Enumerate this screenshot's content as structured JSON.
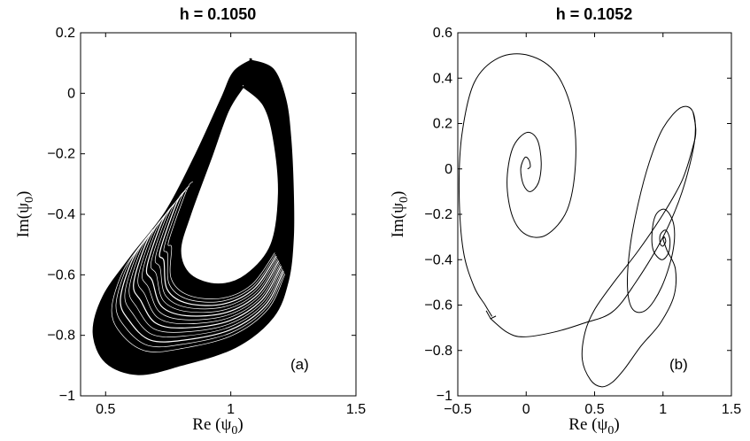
{
  "chart_data": [
    {
      "type": "line",
      "title": "h = 0.1050",
      "xlabel": "Re (ψ0)",
      "ylabel": "Im(ψ0)",
      "xlim": [
        0.4,
        1.5
      ],
      "ylim": [
        -1.0,
        0.2
      ],
      "xticks": [
        0.5,
        1,
        1.5
      ],
      "xtick_labels": [
        "0.5",
        "1",
        "1.5"
      ],
      "yticks": [
        0.2,
        0,
        -0.2,
        -0.4,
        -0.6,
        -0.8,
        -1
      ],
      "ytick_labels": [
        "0.2",
        "0",
        "−0.2",
        "−0.4",
        "−0.6",
        "−0.8",
        "−1"
      ],
      "panel_label": "(a)",
      "grid": false,
      "series": [
        {
          "description": "chaotic attractor band (many overlapping trajectory loops)",
          "outer_boundary": [
            [
              1.08,
              0.11
            ],
            [
              1.17,
              0.08
            ],
            [
              1.22,
              -0.02
            ],
            [
              1.24,
              -0.15
            ],
            [
              1.25,
              -0.32
            ],
            [
              1.25,
              -0.48
            ],
            [
              1.23,
              -0.62
            ],
            [
              1.17,
              -0.74
            ],
            [
              1.02,
              -0.84
            ],
            [
              0.8,
              -0.9
            ],
            [
              0.63,
              -0.93
            ],
            [
              0.5,
              -0.89
            ],
            [
              0.45,
              -0.79
            ],
            [
              0.49,
              -0.67
            ],
            [
              0.6,
              -0.54
            ],
            [
              0.74,
              -0.39
            ],
            [
              0.86,
              -0.2
            ],
            [
              0.96,
              -0.02
            ],
            [
              1.01,
              0.07
            ],
            [
              1.08,
              0.11
            ]
          ],
          "inner_hole": [
            [
              1.05,
              0.02
            ],
            [
              1.13,
              -0.04
            ],
            [
              1.17,
              -0.15
            ],
            [
              1.19,
              -0.33
            ],
            [
              1.16,
              -0.5
            ],
            [
              1.06,
              -0.6
            ],
            [
              0.95,
              -0.63
            ],
            [
              0.84,
              -0.6
            ],
            [
              0.8,
              -0.52
            ],
            [
              0.84,
              -0.4
            ],
            [
              0.92,
              -0.22
            ],
            [
              0.99,
              -0.06
            ],
            [
              1.05,
              0.02
            ]
          ]
        }
      ]
    },
    {
      "type": "line",
      "title": "h = 0.1052",
      "xlabel": "Re (ψ0)",
      "ylabel": "Im(ψ0)",
      "xlim": [
        -0.5,
        1.5
      ],
      "ylim": [
        -1.0,
        0.6
      ],
      "xticks": [
        -0.5,
        0,
        0.5,
        1,
        1.5
      ],
      "xtick_labels": [
        "−0.5",
        "0",
        "0.5",
        "1",
        "1.5"
      ],
      "yticks": [
        0.6,
        0.4,
        0.2,
        0,
        -0.2,
        -0.4,
        -0.6,
        -0.8,
        -1
      ],
      "ytick_labels": [
        "0.6",
        "0.4",
        "0.2",
        "0",
        "−0.2",
        "−0.4",
        "−0.6",
        "−0.8",
        "−1"
      ],
      "panel_label": "(b)",
      "grid": false,
      "series": [
        {
          "description": "single trajectory spiralling out of the unstable focus near (0, 0), looping around the focus near (1, -0.31)",
          "points": [
            [
              -0.25,
              -0.65
            ],
            [
              -0.3,
              -0.6
            ],
            [
              -0.38,
              -0.52
            ],
            [
              -0.46,
              -0.36
            ],
            [
              -0.49,
              -0.1
            ],
            [
              -0.47,
              0.15
            ],
            [
              -0.38,
              0.38
            ],
            [
              -0.2,
              0.49
            ],
            [
              0.02,
              0.5
            ],
            [
              0.22,
              0.42
            ],
            [
              0.34,
              0.24
            ],
            [
              0.36,
              0.02
            ],
            [
              0.3,
              -0.18
            ],
            [
              0.15,
              -0.29
            ],
            [
              0,
              -0.29
            ],
            [
              -0.1,
              -0.21
            ],
            [
              -0.14,
              -0.06
            ],
            [
              -0.1,
              0.09
            ],
            [
              0,
              0.16
            ],
            [
              0.08,
              0.13
            ],
            [
              0.11,
              0.03
            ],
            [
              0.09,
              -0.06
            ],
            [
              0.03,
              -0.1
            ],
            [
              -0.02,
              -0.07
            ],
            [
              -0.04,
              0
            ],
            [
              -0.01,
              0.05
            ],
            [
              0.02,
              0.04
            ],
            [
              0.03,
              0.01
            ],
            [
              0.01,
              0
            ]
          ]
        },
        {
          "description": "trajectory from the lower-left arrow across to the spiral around (1, -0.31)",
          "points": [
            [
              -0.26,
              -0.66
            ],
            [
              -0.14,
              -0.72
            ],
            [
              -0.02,
              -0.74
            ],
            [
              0.2,
              -0.72
            ],
            [
              0.42,
              -0.68
            ],
            [
              0.63,
              -0.63
            ],
            [
              0.8,
              -0.5
            ],
            [
              1.0,
              -0.3
            ],
            [
              1.14,
              -0.1
            ],
            [
              1.23,
              0.12
            ],
            [
              1.22,
              0.25
            ],
            [
              1.13,
              0.27
            ],
            [
              1.0,
              0.18
            ],
            [
              0.9,
              0.03
            ],
            [
              0.82,
              -0.15
            ],
            [
              0.76,
              -0.34
            ],
            [
              0.74,
              -0.52
            ],
            [
              0.78,
              -0.62
            ],
            [
              0.88,
              -0.62
            ],
            [
              0.99,
              -0.52
            ],
            [
              1.07,
              -0.37
            ],
            [
              1.08,
              -0.25
            ],
            [
              1.02,
              -0.18
            ],
            [
              0.95,
              -0.2
            ],
            [
              0.92,
              -0.28
            ],
            [
              0.93,
              -0.36
            ],
            [
              0.99,
              -0.4
            ],
            [
              1.04,
              -0.37
            ],
            [
              1.05,
              -0.31
            ],
            [
              1.02,
              -0.27
            ],
            [
              0.98,
              -0.29
            ],
            [
              0.98,
              -0.33
            ],
            [
              1.0,
              -0.34
            ],
            [
              1.02,
              -0.32
            ],
            [
              1.01,
              -0.3
            ],
            [
              1.0,
              -0.31
            ]
          ]
        },
        {
          "description": "outer loop through the bottom of the panel and back up the right side",
          "points": [
            [
              1.0,
              -0.31
            ],
            [
              1.03,
              -0.36
            ],
            [
              1.09,
              -0.44
            ],
            [
              1.08,
              -0.56
            ],
            [
              0.98,
              -0.68
            ],
            [
              0.84,
              -0.78
            ],
            [
              0.72,
              -0.88
            ],
            [
              0.63,
              -0.94
            ],
            [
              0.55,
              -0.96
            ],
            [
              0.47,
              -0.93
            ],
            [
              0.41,
              -0.84
            ],
            [
              0.43,
              -0.72
            ],
            [
              0.5,
              -0.62
            ],
            [
              0.64,
              -0.5
            ],
            [
              0.82,
              -0.36
            ],
            [
              1.0,
              -0.2
            ],
            [
              1.14,
              -0.05
            ],
            [
              1.22,
              0.1
            ],
            [
              1.24,
              0.17
            ],
            [
              1.22,
              0.25
            ]
          ]
        }
      ]
    }
  ]
}
